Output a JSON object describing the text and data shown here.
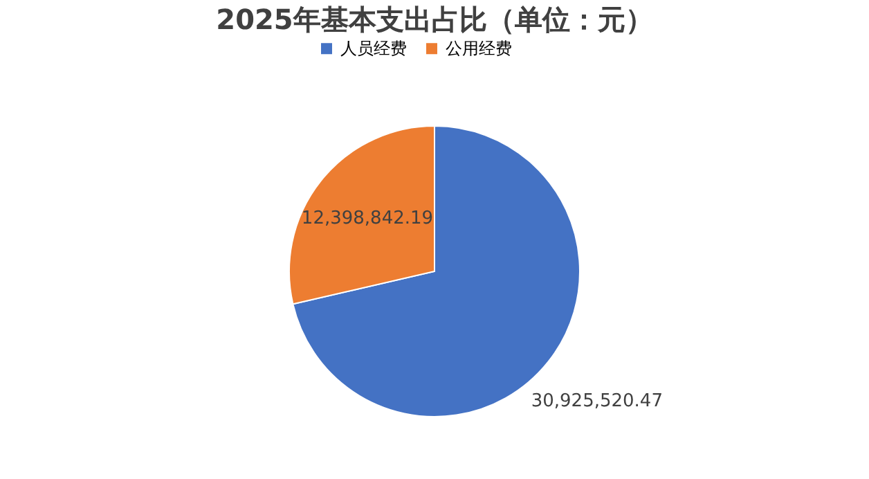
{
  "chart_data": {
    "type": "pie",
    "title": "2025年基本支出占比（单位：元）",
    "categories": [
      "人员经费",
      "公用经费"
    ],
    "values": [
      30925520.47,
      12398842.19
    ],
    "colors": [
      "#4472c4",
      "#ed7d31"
    ],
    "value_labels": [
      "30,925,520.47",
      "12,398,842.19"
    ],
    "legend": "top"
  }
}
